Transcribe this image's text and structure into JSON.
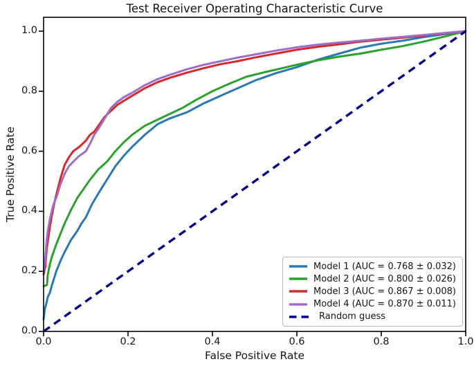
{
  "figure": {
    "title": "Test Receiver Operating Characteristic Curve",
    "x_label": "False Positive Rate",
    "y_label": "True Positive Rate"
  },
  "chart_data": {
    "type": "line",
    "title": "Test Receiver Operating Characteristic Curve",
    "xlabel": "False Positive Rate",
    "ylabel": "True Positive Rate",
    "xlim": [
      0.0,
      1.0
    ],
    "ylim": [
      0.0,
      1.05
    ],
    "grid": false,
    "legend_position": "lower right",
    "x_ticks": [
      {
        "v": 0.0,
        "label": "0.0"
      },
      {
        "v": 0.2,
        "label": "0.2"
      },
      {
        "v": 0.4,
        "label": "0.4"
      },
      {
        "v": 0.6,
        "label": "0.6"
      },
      {
        "v": 0.8,
        "label": "0.8"
      },
      {
        "v": 1.0,
        "label": "1.0"
      }
    ],
    "y_ticks": [
      {
        "v": 0.0,
        "label": "0.0"
      },
      {
        "v": 0.2,
        "label": "0.2"
      },
      {
        "v": 0.4,
        "label": "0.4"
      },
      {
        "v": 0.6,
        "label": "0.6"
      },
      {
        "v": 0.8,
        "label": "0.8"
      },
      {
        "v": 1.0,
        "label": "1.0"
      }
    ],
    "series": [
      {
        "name": "model-1",
        "label": "Model 1 (AUC = 0.768 ± 0.032)",
        "color": "#2878b5",
        "dashed": false,
        "auc": 0.768,
        "auc_std": 0.032,
        "points": [
          [
            0,
            0.04
          ],
          [
            0.003,
            0.075
          ],
          [
            0.006,
            0.09
          ],
          [
            0.01,
            0.115
          ],
          [
            0.015,
            0.13
          ],
          [
            0.02,
            0.155
          ],
          [
            0.03,
            0.2
          ],
          [
            0.04,
            0.235
          ],
          [
            0.05,
            0.265
          ],
          [
            0.065,
            0.305
          ],
          [
            0.08,
            0.335
          ],
          [
            0.09,
            0.36
          ],
          [
            0.1,
            0.38
          ],
          [
            0.115,
            0.425
          ],
          [
            0.13,
            0.46
          ],
          [
            0.15,
            0.505
          ],
          [
            0.17,
            0.55
          ],
          [
            0.19,
            0.585
          ],
          [
            0.21,
            0.615
          ],
          [
            0.24,
            0.655
          ],
          [
            0.27,
            0.69
          ],
          [
            0.3,
            0.71
          ],
          [
            0.34,
            0.73
          ],
          [
            0.38,
            0.76
          ],
          [
            0.42,
            0.785
          ],
          [
            0.46,
            0.81
          ],
          [
            0.5,
            0.835
          ],
          [
            0.55,
            0.86
          ],
          [
            0.6,
            0.88
          ],
          [
            0.65,
            0.905
          ],
          [
            0.7,
            0.925
          ],
          [
            0.75,
            0.945
          ],
          [
            0.8,
            0.958
          ],
          [
            0.85,
            0.968
          ],
          [
            0.9,
            0.98
          ],
          [
            0.95,
            0.99
          ],
          [
            1,
            1
          ]
        ]
      },
      {
        "name": "model-2",
        "label": "Model 2 (AUC = 0.800 ± 0.026)",
        "color": "#2aa12e",
        "dashed": false,
        "auc": 0.8,
        "auc_std": 0.026,
        "points": [
          [
            0,
            0.15
          ],
          [
            0.008,
            0.155
          ],
          [
            0.01,
            0.19
          ],
          [
            0.015,
            0.225
          ],
          [
            0.02,
            0.25
          ],
          [
            0.03,
            0.29
          ],
          [
            0.04,
            0.325
          ],
          [
            0.05,
            0.36
          ],
          [
            0.065,
            0.405
          ],
          [
            0.08,
            0.445
          ],
          [
            0.095,
            0.475
          ],
          [
            0.11,
            0.505
          ],
          [
            0.13,
            0.54
          ],
          [
            0.15,
            0.565
          ],
          [
            0.17,
            0.6
          ],
          [
            0.19,
            0.63
          ],
          [
            0.21,
            0.655
          ],
          [
            0.24,
            0.685
          ],
          [
            0.27,
            0.705
          ],
          [
            0.3,
            0.725
          ],
          [
            0.33,
            0.745
          ],
          [
            0.36,
            0.77
          ],
          [
            0.4,
            0.8
          ],
          [
            0.44,
            0.825
          ],
          [
            0.48,
            0.848
          ],
          [
            0.52,
            0.862
          ],
          [
            0.56,
            0.875
          ],
          [
            0.6,
            0.888
          ],
          [
            0.65,
            0.903
          ],
          [
            0.7,
            0.915
          ],
          [
            0.75,
            0.925
          ],
          [
            0.8,
            0.938
          ],
          [
            0.85,
            0.95
          ],
          [
            0.9,
            0.965
          ],
          [
            0.95,
            0.982
          ],
          [
            1,
            1
          ]
        ]
      },
      {
        "name": "model-3",
        "label": "Model 3 (AUC = 0.867 ± 0.008)",
        "color": "#d62828",
        "dashed": false,
        "auc": 0.867,
        "auc_std": 0.008,
        "points": [
          [
            0,
            0.19
          ],
          [
            0.004,
            0.215
          ],
          [
            0.007,
            0.27
          ],
          [
            0.01,
            0.3
          ],
          [
            0.015,
            0.35
          ],
          [
            0.02,
            0.39
          ],
          [
            0.025,
            0.425
          ],
          [
            0.03,
            0.455
          ],
          [
            0.04,
            0.51
          ],
          [
            0.05,
            0.555
          ],
          [
            0.06,
            0.58
          ],
          [
            0.07,
            0.6
          ],
          [
            0.085,
            0.615
          ],
          [
            0.1,
            0.635
          ],
          [
            0.11,
            0.655
          ],
          [
            0.12,
            0.665
          ],
          [
            0.13,
            0.685
          ],
          [
            0.145,
            0.715
          ],
          [
            0.16,
            0.735
          ],
          [
            0.175,
            0.755
          ],
          [
            0.19,
            0.768
          ],
          [
            0.21,
            0.785
          ],
          [
            0.24,
            0.81
          ],
          [
            0.27,
            0.83
          ],
          [
            0.3,
            0.845
          ],
          [
            0.34,
            0.862
          ],
          [
            0.38,
            0.877
          ],
          [
            0.42,
            0.89
          ],
          [
            0.46,
            0.9
          ],
          [
            0.5,
            0.912
          ],
          [
            0.55,
            0.925
          ],
          [
            0.6,
            0.938
          ],
          [
            0.65,
            0.948
          ],
          [
            0.7,
            0.956
          ],
          [
            0.75,
            0.965
          ],
          [
            0.8,
            0.972
          ],
          [
            0.85,
            0.978
          ],
          [
            0.9,
            0.985
          ],
          [
            0.95,
            0.993
          ],
          [
            1,
            1
          ]
        ]
      },
      {
        "name": "model-4",
        "label": "Model 4 (AUC = 0.870 ± 0.011)",
        "color": "#a06cc8",
        "dashed": false,
        "auc": 0.87,
        "auc_std": 0.011,
        "points": [
          [
            0,
            0.2
          ],
          [
            0.004,
            0.24
          ],
          [
            0.007,
            0.3
          ],
          [
            0.01,
            0.335
          ],
          [
            0.015,
            0.375
          ],
          [
            0.02,
            0.405
          ],
          [
            0.025,
            0.43
          ],
          [
            0.03,
            0.445
          ],
          [
            0.04,
            0.49
          ],
          [
            0.05,
            0.525
          ],
          [
            0.06,
            0.55
          ],
          [
            0.07,
            0.565
          ],
          [
            0.085,
            0.585
          ],
          [
            0.1,
            0.6
          ],
          [
            0.11,
            0.625
          ],
          [
            0.12,
            0.655
          ],
          [
            0.13,
            0.675
          ],
          [
            0.145,
            0.71
          ],
          [
            0.16,
            0.745
          ],
          [
            0.175,
            0.765
          ],
          [
            0.19,
            0.78
          ],
          [
            0.21,
            0.795
          ],
          [
            0.24,
            0.82
          ],
          [
            0.27,
            0.84
          ],
          [
            0.3,
            0.855
          ],
          [
            0.34,
            0.873
          ],
          [
            0.38,
            0.888
          ],
          [
            0.42,
            0.9
          ],
          [
            0.46,
            0.912
          ],
          [
            0.5,
            0.922
          ],
          [
            0.55,
            0.935
          ],
          [
            0.6,
            0.946
          ],
          [
            0.65,
            0.955
          ],
          [
            0.7,
            0.962
          ],
          [
            0.75,
            0.968
          ],
          [
            0.8,
            0.975
          ],
          [
            0.85,
            0.981
          ],
          [
            0.9,
            0.987
          ],
          [
            0.95,
            0.994
          ],
          [
            1,
            1
          ]
        ]
      },
      {
        "name": "random-guess",
        "label": "Random guess",
        "color": "#00008b",
        "dashed": true,
        "points": [
          [
            0,
            0
          ],
          [
            1,
            1
          ]
        ]
      }
    ],
    "colors": {
      "axis": "#000000",
      "text": "#151515",
      "background": "#ffffff",
      "legend_border": "#b8b8b8"
    }
  }
}
